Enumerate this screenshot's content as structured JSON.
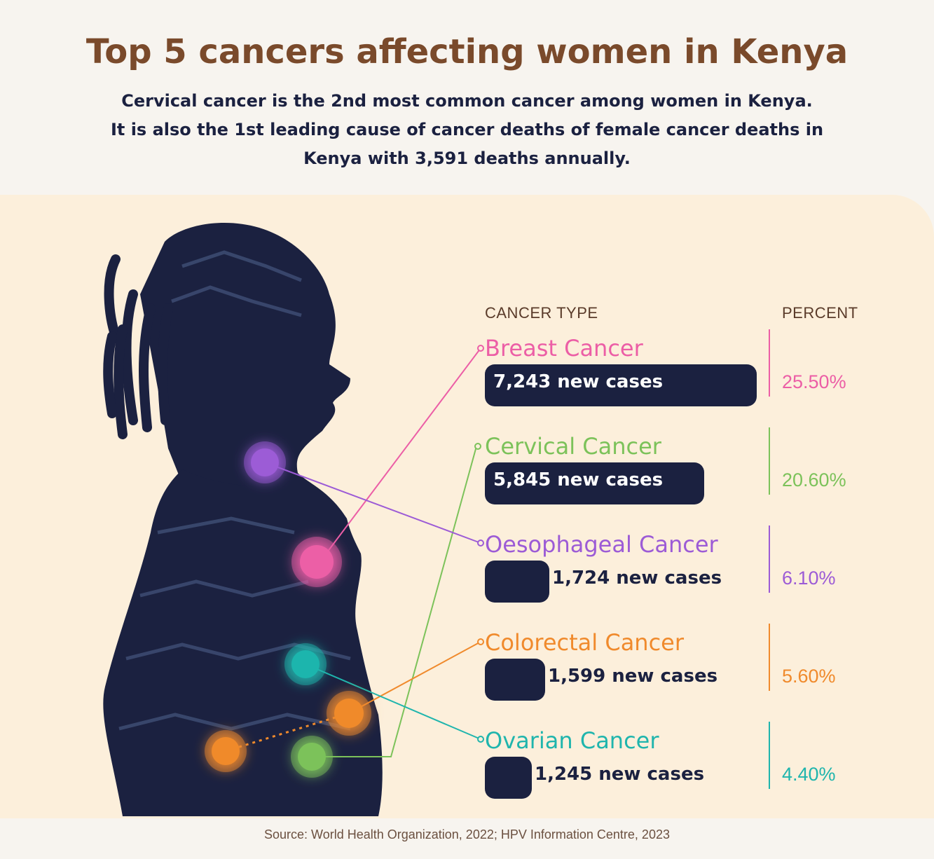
{
  "title": "Top 5 cancers affecting women in Kenya",
  "subtitle": {
    "line1": "Cervical cancer is the 2nd most common cancer among women in Kenya.",
    "line2": "It is also the 1st leading cause of cancer deaths of female cancer deaths in",
    "line3_prefix": "Kenya with ",
    "line3_bold": "3,591",
    "line3_suffix": " deaths annually."
  },
  "headers": {
    "type": "CANCER TYPE",
    "percent": "PERCENT"
  },
  "source": "Source: World Health Organization, 2022; HPV Information Centre, 2023",
  "chart_data": {
    "type": "bar",
    "title": "Top 5 cancers affecting women in Kenya",
    "categories": [
      "Breast Cancer",
      "Cervical Cancer",
      "Oesophageal Cancer",
      "Colorectal Cancer",
      "Ovarian Cancer"
    ],
    "values": [
      7243,
      5845,
      1724,
      1599,
      1245
    ],
    "percents": [
      25.5,
      20.6,
      6.1,
      5.6,
      4.4
    ],
    "case_labels": [
      "7,243 new cases",
      "5,845 new cases",
      "1,724 new cases",
      "1,599 new cases",
      "1,245 new cases"
    ],
    "percent_labels": [
      "25.50%",
      "20.60%",
      "6.10%",
      "5.60%",
      "4.40%"
    ],
    "colors": [
      "#ec5ea6",
      "#7cc25a",
      "#9c5bd6",
      "#f08a2c",
      "#1fb5ad"
    ],
    "xlabel": "CANCER TYPE",
    "ylabel": "PERCENT"
  }
}
